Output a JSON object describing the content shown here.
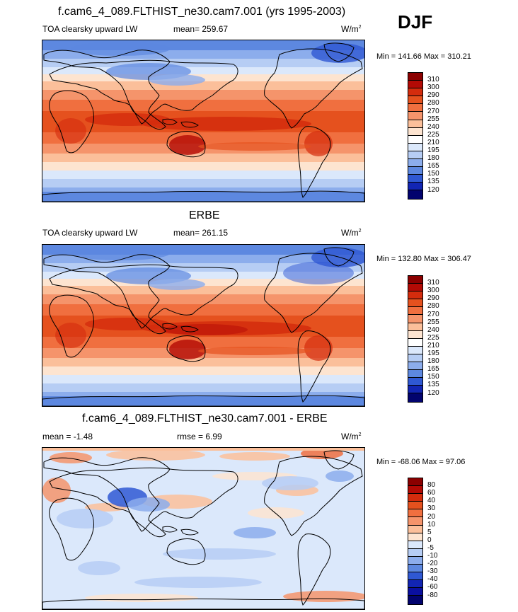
{
  "season": "DJF",
  "panels": [
    {
      "title": "f.cam6_4_089.FLTHIST_ne30.cam7.001 (yrs 1995-2003)",
      "variable": "TOA clearsky upward LW",
      "stat": "mean= 259.67",
      "units": "W/m",
      "units_sup": "2",
      "minmax": "Min = 141.66 Max = 310.21",
      "colorbar_labels": [
        "310",
        "300",
        "290",
        "280",
        "270",
        "255",
        "240",
        "225",
        "210",
        "195",
        "180",
        "165",
        "150",
        "135",
        "120"
      ],
      "colors": [
        "#8b0000",
        "#b30a05",
        "#d42c0d",
        "#e5511e",
        "#f06f3f",
        "#f5946b",
        "#fbbf9a",
        "#fde4d0",
        "#ffffff",
        "#dbe8fb",
        "#b6cdf4",
        "#8cadec",
        "#5d88e0",
        "#2f58d3",
        "#1225b3",
        "#02036e"
      ]
    },
    {
      "title": "ERBE",
      "variable": "TOA clearsky upward LW",
      "stat": "mean= 261.15",
      "units": "W/m",
      "units_sup": "2",
      "minmax": "Min = 132.80 Max = 306.47",
      "colorbar_labels": [
        "310",
        "300",
        "290",
        "280",
        "270",
        "255",
        "240",
        "225",
        "210",
        "195",
        "180",
        "165",
        "150",
        "135",
        "120"
      ],
      "colors": [
        "#8b0000",
        "#b30a05",
        "#d42c0d",
        "#e5511e",
        "#f06f3f",
        "#f5946b",
        "#fbbf9a",
        "#fde4d0",
        "#ffffff",
        "#dbe8fb",
        "#b6cdf4",
        "#8cadec",
        "#5d88e0",
        "#2f58d3",
        "#1225b3",
        "#02036e"
      ]
    },
    {
      "title": "f.cam6_4_089.FLTHIST_ne30.cam7.001 - ERBE",
      "variable": "mean =  -1.48",
      "stat": "rmse =   6.99",
      "units": "W/m",
      "units_sup": "2",
      "minmax": "Min = -68.06 Max =  97.06",
      "colorbar_labels": [
        "80",
        "60",
        "40",
        "30",
        "20",
        "10",
        "5",
        "0",
        "-5",
        "-10",
        "-20",
        "-30",
        "-40",
        "-60",
        "-80"
      ],
      "colors": [
        "#8b0000",
        "#b30a05",
        "#d42c0d",
        "#e5511e",
        "#f06f3f",
        "#f5946b",
        "#fbbf9a",
        "#fde4d0",
        "#dbe8fb",
        "#b6cdf4",
        "#8cadec",
        "#5d88e0",
        "#2f58d3",
        "#1225b3",
        "#0a0fa0",
        "#02036e"
      ]
    }
  ]
}
